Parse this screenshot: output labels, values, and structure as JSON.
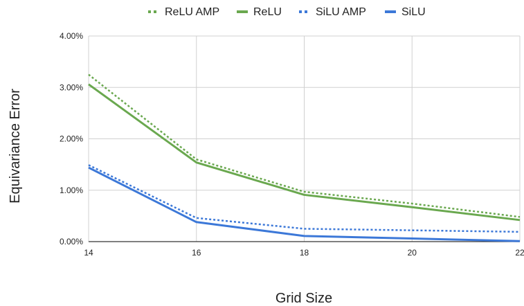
{
  "chart_data": {
    "type": "line",
    "x": [
      14,
      16,
      18,
      20,
      22
    ],
    "xlabel": "Grid Size",
    "ylabel": "Equivariance Error",
    "ylim": [
      0,
      4
    ],
    "y_ticks": [
      "0.00%",
      "1.00%",
      "2.00%",
      "3.00%",
      "4.00%"
    ],
    "x_ticks": [
      "14",
      "16",
      "18",
      "20",
      "22"
    ],
    "grid": true,
    "legend_position": "top",
    "series": [
      {
        "name": "ReLU AMP",
        "values": [
          3.25,
          1.6,
          0.97,
          0.74,
          0.48
        ],
        "color": "#6aa84f",
        "style": "dotted"
      },
      {
        "name": "ReLU",
        "values": [
          3.06,
          1.54,
          0.91,
          0.67,
          0.42
        ],
        "color": "#6aa84f",
        "style": "solid"
      },
      {
        "name": "SiLU AMP",
        "values": [
          1.49,
          0.46,
          0.25,
          0.22,
          0.19
        ],
        "color": "#3c78d8",
        "style": "dotted"
      },
      {
        "name": "SiLU",
        "values": [
          1.44,
          0.38,
          0.11,
          0.06,
          0.01
        ],
        "color": "#3c78d8",
        "style": "solid"
      }
    ]
  }
}
